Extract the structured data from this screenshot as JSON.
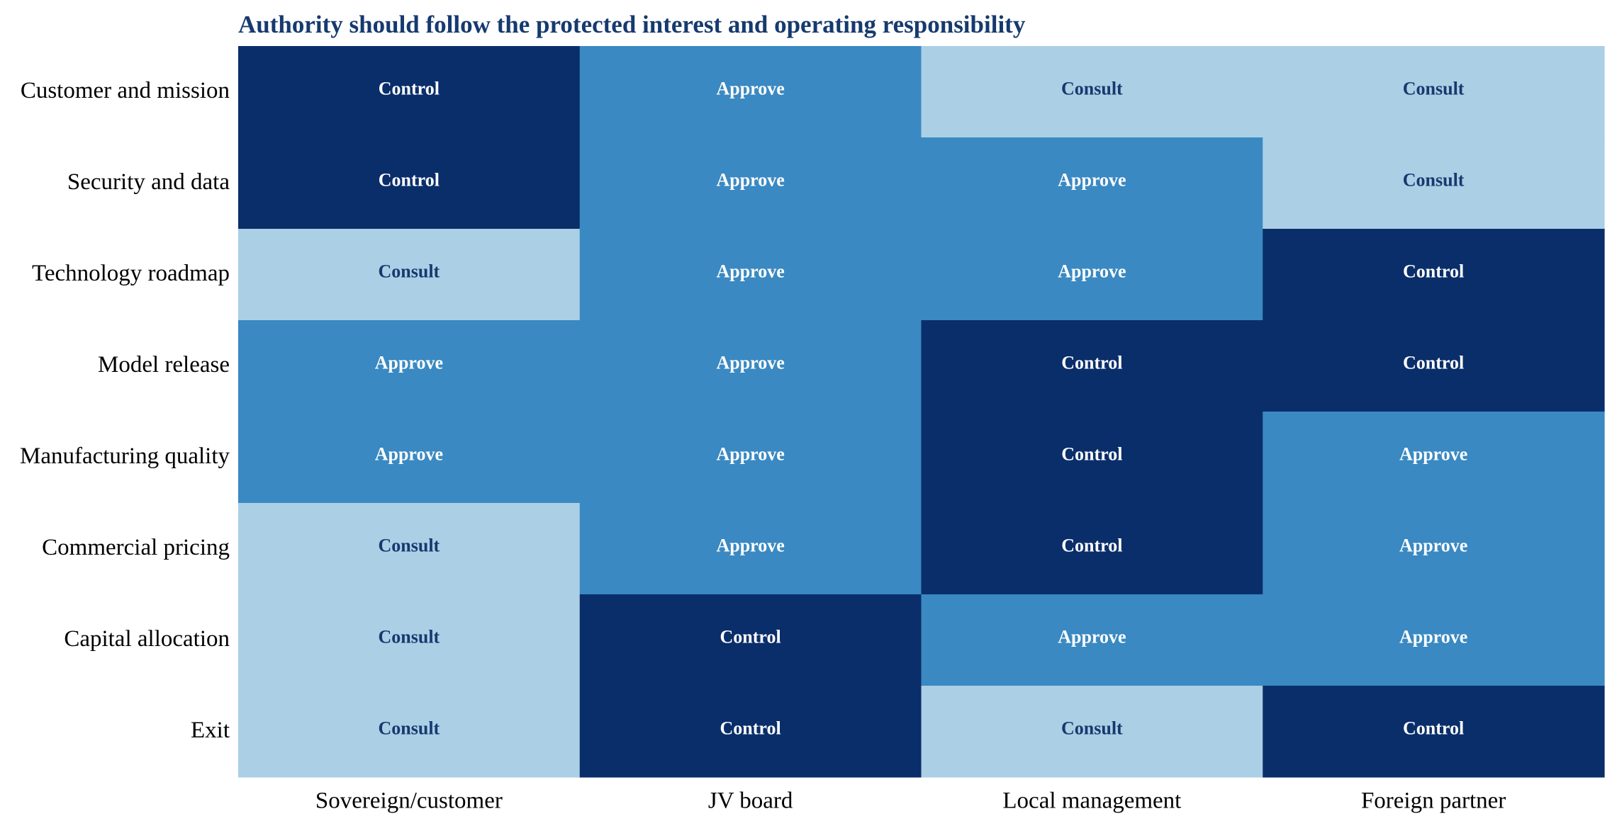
{
  "chart_data": {
    "type": "heatmap",
    "title": "Authority should follow the protected interest and operating responsibility",
    "xlabel": "",
    "ylabel": "",
    "columns": [
      "Sovereign/customer",
      "JV board",
      "Local management",
      "Foreign partner"
    ],
    "rows": [
      "Customer and mission",
      "Security and data",
      "Technology roadmap",
      "Model release",
      "Manufacturing quality",
      "Commercial pricing",
      "Capital allocation",
      "Exit"
    ],
    "levels": [
      "Consult",
      "Approve",
      "Control"
    ],
    "cells": [
      [
        "Control",
        "Approve",
        "Consult",
        "Consult"
      ],
      [
        "Control",
        "Approve",
        "Approve",
        "Consult"
      ],
      [
        "Consult",
        "Approve",
        "Approve",
        "Control"
      ],
      [
        "Approve",
        "Approve",
        "Control",
        "Control"
      ],
      [
        "Approve",
        "Approve",
        "Control",
        "Approve"
      ],
      [
        "Consult",
        "Approve",
        "Control",
        "Approve"
      ],
      [
        "Consult",
        "Control",
        "Approve",
        "Approve"
      ],
      [
        "Consult",
        "Control",
        "Consult",
        "Control"
      ]
    ],
    "legend": "none",
    "grid": false
  },
  "colors": {
    "title": "#163a6e",
    "Consult": "#abcfe5",
    "Approve": "#3a89c2",
    "Control": "#0a2e6a",
    "text_on_light": "#163a6e",
    "text_on_dark": "#ffffff"
  }
}
